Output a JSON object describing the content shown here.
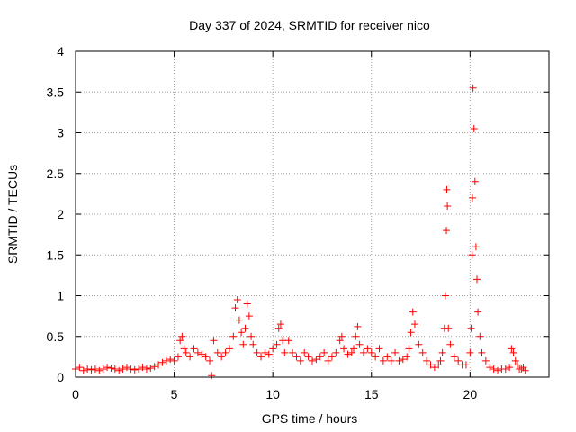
{
  "chart_data": {
    "type": "scatter",
    "title": "Day 337 of 2024, SRMTID for receiver nico",
    "xlabel": "GPS time / hours",
    "ylabel": "SRMTID / TECUs",
    "xlim": [
      0,
      24.0
    ],
    "ylim": [
      0,
      4
    ],
    "xticks": [
      0,
      5,
      10,
      15,
      20
    ],
    "xtick_labels": [
      "0",
      "5",
      "10",
      "15",
      "20"
    ],
    "yticks": [
      0,
      0.5,
      1,
      1.5,
      2,
      2.5,
      3,
      3.5,
      4
    ],
    "ytick_labels": [
      "0",
      "0.5",
      "1",
      "1.5",
      "2",
      "2.5",
      "3",
      "3.5",
      "4"
    ],
    "grid": true,
    "marker": "+",
    "color": "#ff0000",
    "series": [
      {
        "name": "SRMTID",
        "x": [
          0.0,
          0.2,
          0.4,
          0.6,
          0.8,
          1.0,
          1.2,
          1.4,
          1.6,
          1.8,
          2.0,
          2.2,
          2.4,
          2.6,
          2.8,
          3.0,
          3.2,
          3.4,
          3.6,
          3.8,
          4.0,
          4.2,
          4.4,
          4.6,
          4.8,
          5.0,
          5.2,
          5.3,
          5.4,
          5.5,
          5.6,
          5.8,
          6.0,
          6.2,
          6.4,
          6.6,
          6.8,
          6.9,
          7.0,
          7.2,
          7.4,
          7.6,
          7.8,
          8.0,
          8.1,
          8.2,
          8.3,
          8.4,
          8.5,
          8.6,
          8.7,
          8.8,
          8.9,
          9.0,
          9.2,
          9.4,
          9.6,
          9.8,
          10.0,
          10.2,
          10.3,
          10.4,
          10.5,
          10.6,
          10.8,
          11.0,
          11.2,
          11.4,
          11.6,
          11.8,
          12.0,
          12.2,
          12.4,
          12.6,
          12.8,
          13.0,
          13.2,
          13.4,
          13.5,
          13.6,
          13.8,
          14.0,
          14.1,
          14.2,
          14.3,
          14.4,
          14.6,
          14.8,
          15.0,
          15.2,
          15.4,
          15.6,
          15.8,
          16.0,
          16.2,
          16.4,
          16.6,
          16.8,
          16.9,
          17.0,
          17.1,
          17.2,
          17.4,
          17.6,
          17.8,
          18.0,
          18.2,
          18.4,
          18.5,
          18.6,
          18.7,
          18.75,
          18.8,
          18.82,
          18.85,
          18.9,
          19.0,
          19.2,
          19.4,
          19.6,
          19.8,
          20.0,
          20.05,
          20.1,
          20.12,
          20.15,
          20.2,
          20.25,
          20.3,
          20.35,
          20.4,
          20.5,
          20.6,
          20.8,
          21.0,
          21.2,
          21.4,
          21.6,
          21.8,
          22.0,
          22.1,
          22.2,
          22.3,
          22.4,
          22.5,
          22.6,
          22.7,
          22.8
        ],
        "y": [
          0.1,
          0.12,
          0.08,
          0.1,
          0.09,
          0.1,
          0.08,
          0.1,
          0.12,
          0.11,
          0.1,
          0.08,
          0.1,
          0.12,
          0.1,
          0.09,
          0.1,
          0.12,
          0.1,
          0.11,
          0.13,
          0.15,
          0.18,
          0.2,
          0.22,
          0.2,
          0.25,
          0.45,
          0.5,
          0.35,
          0.3,
          0.25,
          0.35,
          0.3,
          0.28,
          0.25,
          0.2,
          0.02,
          0.45,
          0.3,
          0.25,
          0.3,
          0.35,
          0.5,
          0.85,
          0.95,
          0.7,
          0.55,
          0.4,
          0.6,
          0.9,
          0.75,
          0.5,
          0.4,
          0.3,
          0.25,
          0.3,
          0.28,
          0.35,
          0.4,
          0.6,
          0.65,
          0.45,
          0.3,
          0.45,
          0.3,
          0.25,
          0.2,
          0.3,
          0.25,
          0.2,
          0.22,
          0.25,
          0.3,
          0.2,
          0.25,
          0.3,
          0.45,
          0.5,
          0.35,
          0.28,
          0.3,
          0.35,
          0.5,
          0.62,
          0.4,
          0.3,
          0.35,
          0.3,
          0.25,
          0.35,
          0.2,
          0.25,
          0.2,
          0.3,
          0.2,
          0.22,
          0.25,
          0.35,
          0.55,
          0.8,
          0.65,
          0.4,
          0.3,
          0.2,
          0.15,
          0.12,
          0.15,
          0.2,
          0.3,
          0.6,
          1.0,
          1.8,
          2.3,
          2.1,
          0.6,
          0.4,
          0.25,
          0.2,
          0.15,
          0.15,
          0.3,
          0.6,
          1.5,
          2.2,
          3.55,
          3.05,
          2.4,
          1.6,
          1.2,
          0.8,
          0.5,
          0.3,
          0.2,
          0.12,
          0.1,
          0.08,
          0.1,
          0.1,
          0.12,
          0.35,
          0.3,
          0.2,
          0.15,
          0.1,
          0.1,
          0.12,
          0.08
        ]
      }
    ]
  }
}
